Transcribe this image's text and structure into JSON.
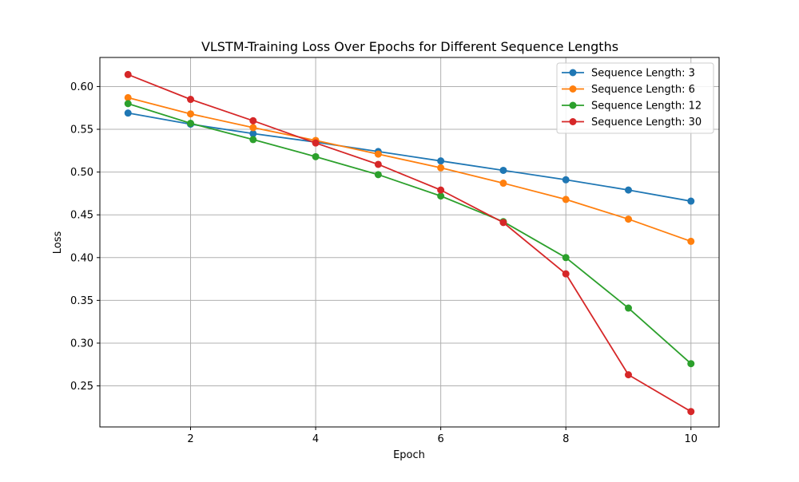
{
  "chart_data": {
    "type": "line",
    "title": "VLSTM-Training Loss Over Epochs for Different Sequence Lengths",
    "xlabel": "Epoch",
    "ylabel": "Loss",
    "xlim": [
      0.55,
      10.45
    ],
    "ylim": [
      0.202,
      0.634
    ],
    "x": [
      1,
      2,
      3,
      4,
      5,
      6,
      7,
      8,
      9,
      10
    ],
    "xticks": [
      2,
      4,
      6,
      8,
      10
    ],
    "yticks": [
      0.25,
      0.3,
      0.35,
      0.4,
      0.45,
      0.5,
      0.55,
      0.6
    ],
    "grid": true,
    "legend_position": "top-right",
    "series": [
      {
        "name": "Sequence Length: 3",
        "color": "#1f77b4",
        "values": [
          0.569,
          0.556,
          0.545,
          0.535,
          0.524,
          0.513,
          0.502,
          0.491,
          0.479,
          0.466
        ]
      },
      {
        "name": "Sequence Length: 6",
        "color": "#ff7f0e",
        "values": [
          0.587,
          0.568,
          0.552,
          0.537,
          0.521,
          0.505,
          0.487,
          0.468,
          0.445,
          0.419
        ]
      },
      {
        "name": "Sequence Length: 12",
        "color": "#2ca02c",
        "values": [
          0.58,
          0.557,
          0.538,
          0.518,
          0.497,
          0.472,
          0.442,
          0.4,
          0.341,
          0.276
        ]
      },
      {
        "name": "Sequence Length: 30",
        "color": "#d62728",
        "values": [
          0.614,
          0.585,
          0.56,
          0.534,
          0.509,
          0.479,
          0.441,
          0.381,
          0.263,
          0.22
        ]
      }
    ]
  }
}
